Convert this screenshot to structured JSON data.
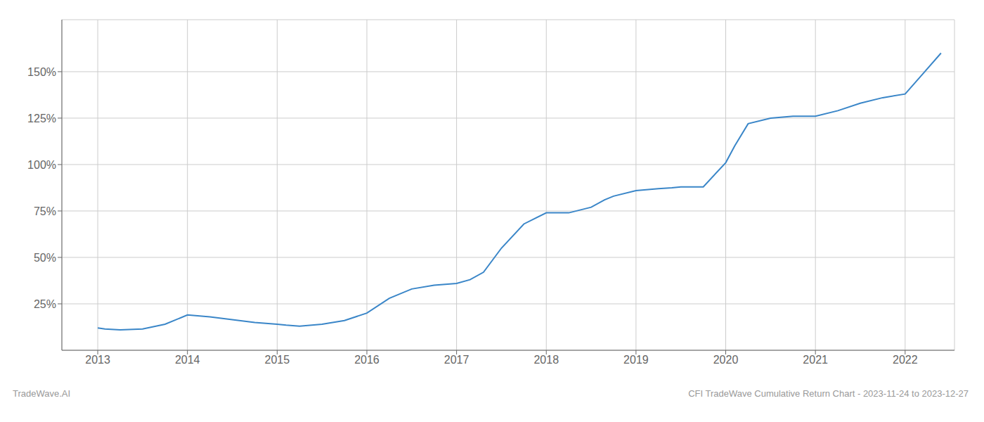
{
  "chart_data": {
    "type": "line",
    "x": [
      2013.0,
      2013.08,
      2013.25,
      2013.5,
      2013.75,
      2014.0,
      2014.25,
      2014.5,
      2014.75,
      2015.0,
      2015.1,
      2015.25,
      2015.5,
      2015.75,
      2016.0,
      2016.25,
      2016.5,
      2016.75,
      2017.0,
      2017.15,
      2017.3,
      2017.5,
      2017.75,
      2018.0,
      2018.25,
      2018.5,
      2018.65,
      2018.75,
      2019.0,
      2019.25,
      2019.4,
      2019.5,
      2019.6,
      2019.75,
      2020.0,
      2020.1,
      2020.25,
      2020.5,
      2020.75,
      2021.0,
      2021.25,
      2021.5,
      2021.75,
      2022.0,
      2022.2,
      2022.4
    ],
    "values": [
      12,
      11.5,
      11,
      11.5,
      14,
      19,
      18,
      16.5,
      15,
      14,
      13.5,
      13,
      14,
      16,
      20,
      28,
      33,
      35,
      36,
      38,
      42,
      55,
      68,
      74,
      74,
      77,
      81,
      83,
      86,
      87,
      87.5,
      88,
      88,
      88,
      101,
      110,
      122,
      125,
      126,
      126,
      129,
      133,
      136,
      138,
      149,
      160
    ],
    "color": "#3a86c8",
    "xlim": [
      2012.6,
      2022.55
    ],
    "ylim": [
      0,
      178
    ],
    "xticks": [
      2013,
      2014,
      2015,
      2016,
      2017,
      2018,
      2019,
      2020,
      2021,
      2022
    ],
    "yticks": [
      {
        "value": 25,
        "label": "25%"
      },
      {
        "value": 50,
        "label": "50%"
      },
      {
        "value": 75,
        "label": "75%"
      },
      {
        "value": 100,
        "label": "100%"
      },
      {
        "value": 125,
        "label": "125%"
      },
      {
        "value": 150,
        "label": "150%"
      }
    ],
    "grid": true,
    "annotations": [
      "TradeWave.AI",
      "CFI TradeWave Cumulative Return Chart - 2023-11-24 to 2023-12-27"
    ]
  }
}
